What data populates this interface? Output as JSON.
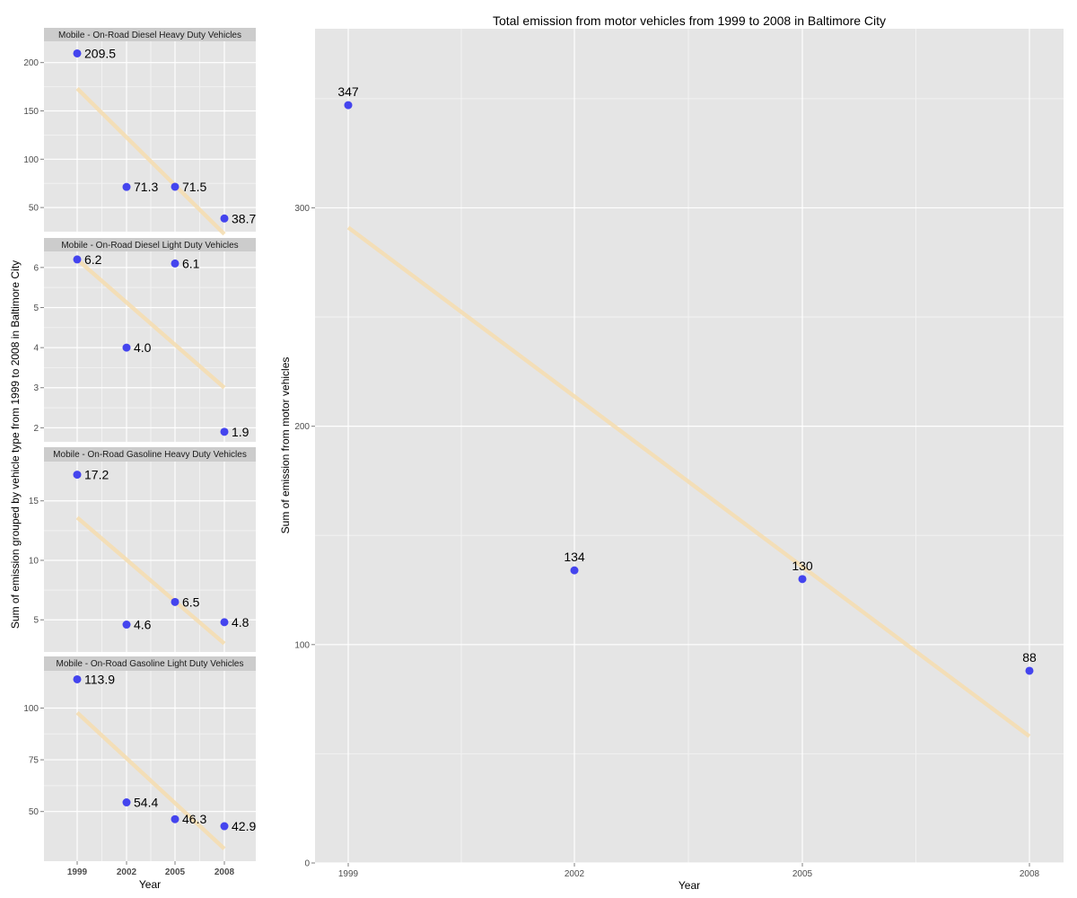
{
  "chart_data": [
    {
      "type": "scatter",
      "panel": "facets",
      "xlabel": "Year",
      "ylabel": "Sum of emission grouped by vehicle type from 1999 to 2008 in Baltimore City",
      "x": [
        "1999",
        "2002",
        "2005",
        "2008"
      ],
      "facets": [
        {
          "name": "Mobile - On-Road Diesel Heavy Duty Vehicles",
          "values": [
            209.5,
            71.3,
            71.5,
            38.7
          ],
          "labels": [
            "209.5",
            "71.3",
            "71.5",
            "38.7"
          ],
          "trend": [
            173.2,
            22.5
          ],
          "ylim": [
            25,
            222
          ],
          "yticks": [
            50,
            100,
            150,
            200
          ],
          "ytick_labels": [
            "50",
            "100",
            "150",
            "200"
          ]
        },
        {
          "name": "Mobile - On-Road Diesel Light Duty Vehicles",
          "values": [
            6.2,
            4.0,
            6.1,
            1.9
          ],
          "labels": [
            "6.2",
            "4.0",
            "6.1",
            "1.9"
          ],
          "trend": [
            6.2,
            3.0
          ],
          "ylim": [
            1.65,
            6.4
          ],
          "yticks": [
            2,
            3,
            4,
            5,
            6
          ],
          "ytick_labels": [
            "2",
            "3",
            "4",
            "5",
            "6"
          ]
        },
        {
          "name": "Mobile - On-Road Gasoline Heavy Duty Vehicles",
          "values": [
            17.2,
            4.6,
            6.5,
            4.8
          ],
          "labels": [
            "17.2",
            "4.6",
            "6.5",
            "4.8"
          ],
          "trend": [
            13.6,
            3.0
          ],
          "ylim": [
            2.3,
            18.3
          ],
          "yticks": [
            5,
            10,
            15
          ],
          "ytick_labels": [
            "5",
            "10",
            "15"
          ]
        },
        {
          "name": "Mobile - On-Road Gasoline Light Duty Vehicles",
          "values": [
            113.9,
            54.4,
            46.3,
            42.9
          ],
          "labels": [
            "113.9",
            "54.4",
            "46.3",
            "42.9"
          ],
          "trend": [
            97.8,
            32.0
          ],
          "ylim": [
            26,
            118
          ],
          "yticks": [
            50,
            75,
            100
          ],
          "ytick_labels": [
            "50",
            "75",
            "100"
          ]
        }
      ],
      "point_color": "#4444ee",
      "trend_color": "#f5deb3"
    },
    {
      "type": "scatter",
      "panel": "total",
      "title": "Total emission from motor vehicles from 1999 to 2008 in Baltimore City",
      "xlabel": "Year",
      "ylabel": "Sum of emission from motor vehicles",
      "x": [
        "1999",
        "2002",
        "2005",
        "2008"
      ],
      "values": [
        347,
        134,
        130,
        88
      ],
      "labels": [
        "347",
        "134",
        "130",
        "88"
      ],
      "trend": [
        291,
        58
      ],
      "ylim": [
        0,
        382
      ],
      "yticks": [
        0,
        100,
        200,
        300
      ],
      "ytick_labels": [
        "0",
        "100",
        "200",
        "300"
      ],
      "point_color": "#4444ee",
      "trend_color": "#f5deb3"
    }
  ]
}
